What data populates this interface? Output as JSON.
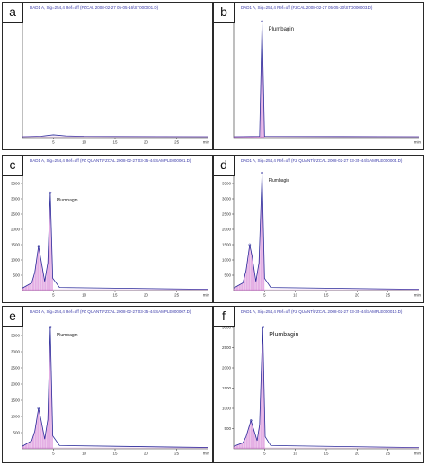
{
  "panels": [
    {
      "id": "a",
      "letter": "a",
      "header": "DAD1 A, Sig=254,4 Ref=off (FZCAL 2008-02-27 05-05-16\\ST000001.D)",
      "peak_label": "",
      "y_ticks": [],
      "x_ticks": [
        "5",
        "10",
        "15",
        "20",
        "25"
      ],
      "x_unit": "min"
    },
    {
      "id": "b",
      "letter": "b",
      "header": "DAD1 A, Sig=254,4 Ref=off (FZCAL 2008-02-27 05-05-20\\STD000003.D)",
      "peak_label": "Plumbagin",
      "y_ticks": [],
      "x_ticks": [],
      "x_unit": "min"
    },
    {
      "id": "c",
      "letter": "c",
      "header": "DAD1 A, Sig=254,4 Ref=off (FZ QUANT\\FZCAL 2008-02-27 03-35-44\\SAMPLE000001.D)",
      "peak_label": "Plumbagin",
      "y_ticks": [
        "3500",
        "3000",
        "2500",
        "2000",
        "1500",
        "1000",
        "500"
      ],
      "x_ticks": [
        "5",
        "10",
        "15",
        "20",
        "25"
      ],
      "x_unit": "min"
    },
    {
      "id": "d",
      "letter": "d",
      "header": "DAD1 A, Sig=254,4 Ref=off (FZ QUANT\\FZCAL 2008-02-27 03-35-44\\SAMPLE000004.D)",
      "peak_label": "Plumbagin",
      "y_ticks": [
        "3500",
        "3000",
        "2500",
        "2000",
        "1500",
        "1000",
        "500"
      ],
      "x_ticks": [
        "5",
        "10",
        "15",
        "20",
        "25"
      ],
      "x_unit": "min"
    },
    {
      "id": "e",
      "letter": "e",
      "header": "DAD1 A, Sig=254,4 Ref=off (FZ QUANT\\FZCAL 2008-02-27 03-35-44\\SAMPLE000007.D)",
      "peak_label": "Plumbagin",
      "y_ticks": [
        "3500",
        "3000",
        "2500",
        "2000",
        "1500",
        "1000",
        "500"
      ],
      "x_ticks": [
        "5",
        "10",
        "15",
        "20",
        "25"
      ],
      "x_unit": "min"
    },
    {
      "id": "f",
      "letter": "f",
      "header": "DAD1 A, Sig=254,4 Ref=off (FZ QUANT\\FZCAL 2008-02-27 03-35-44\\SAMPLE000010.D)",
      "peak_label": "Plumbagin",
      "y_ticks": [
        "3000",
        "2500",
        "2000",
        "1500",
        "1000",
        "500"
      ],
      "x_ticks": [
        "5",
        "10",
        "15",
        "20",
        "25"
      ],
      "x_unit": "min"
    }
  ],
  "chart_data": [
    {
      "panel": "a",
      "type": "line",
      "xlabel": "min",
      "xlim": [
        0,
        30
      ],
      "ylim": [
        0,
        4000
      ],
      "series": [
        {
          "x": [
            0,
            3,
            5,
            7,
            10,
            30
          ],
          "y": [
            30,
            45,
            90,
            55,
            40,
            30
          ]
        }
      ]
    },
    {
      "panel": "b",
      "type": "line",
      "xlabel": "min",
      "xlim": [
        0,
        30
      ],
      "ylim": [
        0,
        4000
      ],
      "peaks": [
        {
          "label": "Plumbagin",
          "x": 4.6,
          "y": 3800
        }
      ],
      "series": [
        {
          "x": [
            0,
            4.2,
            4.6,
            5.0,
            30
          ],
          "y": [
            30,
            40,
            3800,
            40,
            30
          ]
        }
      ]
    },
    {
      "panel": "c",
      "type": "line",
      "xlabel": "min",
      "xlim": [
        0,
        30
      ],
      "ylim": [
        0,
        4000
      ],
      "peaks": [
        {
          "label": "Plumbagin",
          "x": 4.5,
          "y": 3200
        },
        {
          "x": 2.6,
          "y": 1450
        }
      ],
      "series": [
        {
          "x": [
            0,
            1.5,
            2.0,
            2.6,
            3.0,
            3.6,
            4.1,
            4.5,
            4.9,
            6,
            30
          ],
          "y": [
            80,
            250,
            600,
            1450,
            1000,
            300,
            900,
            3200,
            400,
            100,
            40
          ]
        }
      ]
    },
    {
      "panel": "d",
      "type": "line",
      "xlabel": "min",
      "xlim": [
        0,
        30
      ],
      "ylim": [
        0,
        4000
      ],
      "peaks": [
        {
          "label": "Plumbagin",
          "x": 4.6,
          "y": 3850
        },
        {
          "x": 2.6,
          "y": 1500
        }
      ],
      "series": [
        {
          "x": [
            0,
            1.5,
            2.0,
            2.6,
            3.0,
            3.6,
            4.1,
            4.6,
            5.0,
            6,
            30
          ],
          "y": [
            80,
            250,
            650,
            1500,
            1100,
            300,
            900,
            3850,
            400,
            100,
            40
          ]
        }
      ]
    },
    {
      "panel": "e",
      "type": "line",
      "xlabel": "min",
      "xlim": [
        0,
        30
      ],
      "ylim": [
        0,
        4000
      ],
      "peaks": [
        {
          "label": "Plumbagin",
          "x": 4.5,
          "y": 3750
        },
        {
          "x": 2.6,
          "y": 1250
        }
      ],
      "series": [
        {
          "x": [
            0,
            1.5,
            2.0,
            2.6,
            3.0,
            3.6,
            4.1,
            4.5,
            4.9,
            6,
            30
          ],
          "y": [
            80,
            250,
            550,
            1250,
            900,
            300,
            900,
            3750,
            400,
            100,
            40
          ]
        }
      ]
    },
    {
      "panel": "f",
      "type": "line",
      "xlabel": "min",
      "xlim": [
        0,
        30
      ],
      "ylim": [
        0,
        3200
      ],
      "peaks": [
        {
          "label": "Plumbagin",
          "x": 4.7,
          "y": 3000
        },
        {
          "x": 2.8,
          "y": 700
        }
      ],
      "series": [
        {
          "x": [
            0,
            1.5,
            2.0,
            2.8,
            3.2,
            3.8,
            4.2,
            4.7,
            5.1,
            6,
            30
          ],
          "y": [
            60,
            150,
            300,
            700,
            500,
            200,
            600,
            3000,
            300,
            80,
            30
          ]
        }
      ]
    }
  ],
  "colors": {
    "trace": "#2a2a9a",
    "fill": "#cc66cc",
    "header": "#3a3aa8",
    "frame": "#2a2a2a"
  }
}
